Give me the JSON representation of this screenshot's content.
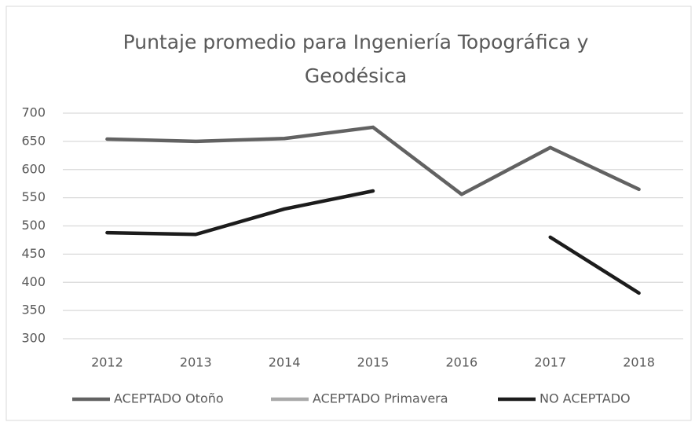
{
  "chart_data": {
    "type": "line",
    "title": "Puntaje promedio para Ingeniería Topográfica y Geodésica",
    "categories": [
      "2012",
      "2013",
      "2014",
      "2015",
      "2016",
      "2017",
      "2018"
    ],
    "series": [
      {
        "name": "ACEPTADO Otoño",
        "color": "#626262",
        "values": [
          654,
          650,
          655,
          675,
          556,
          639,
          565
        ]
      },
      {
        "name": "ACEPTADO Primavera",
        "color": "#a9a9a9",
        "values": [
          null,
          null,
          null,
          null,
          null,
          null,
          null
        ]
      },
      {
        "name": "NO ACEPTADO",
        "color": "#1c1c1c",
        "values": [
          488,
          485,
          530,
          562,
          null,
          480,
          381
        ]
      }
    ],
    "ylim": [
      300,
      700
    ],
    "yticks": [
      300,
      350,
      400,
      450,
      500,
      550,
      600,
      650,
      700
    ],
    "grid": true,
    "legend": "bottom"
  }
}
